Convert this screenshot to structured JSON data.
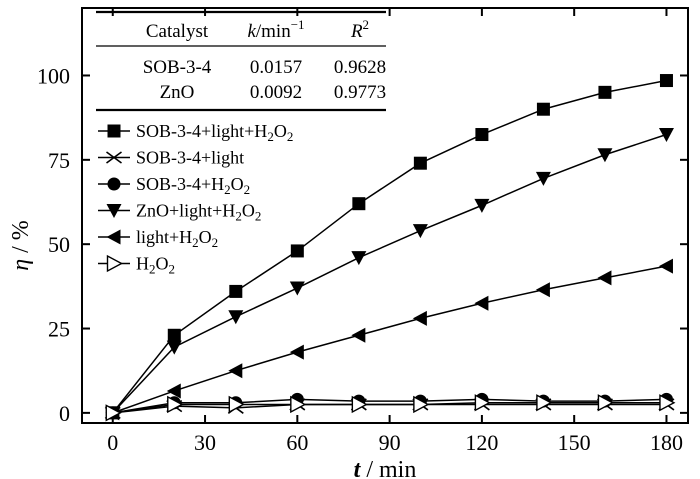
{
  "chart_data": {
    "type": "line",
    "xlabel": {
      "symbol": "t",
      "unit": " / min"
    },
    "ylabel": {
      "symbol": "η",
      "unit": " / %"
    },
    "xlim": [
      -10,
      187
    ],
    "ylim": [
      -3,
      120
    ],
    "xticks": [
      0,
      30,
      60,
      90,
      120,
      150,
      180
    ],
    "yticks": [
      0,
      25,
      50,
      75,
      100
    ],
    "grid": false,
    "legend_position": "left",
    "series": [
      {
        "name": "SOB-3-4+light+H2O2",
        "legend_main": "SOB-3-4+light+H",
        "legend_sub1": "2",
        "legend_mid": "O",
        "legend_sub2": "2",
        "marker": "square-filled",
        "x": [
          0,
          20,
          40,
          60,
          80,
          100,
          120,
          140,
          160,
          180
        ],
        "y": [
          0,
          23,
          36,
          48,
          62,
          74,
          82.5,
          90,
          95,
          98.5
        ]
      },
      {
        "name": "SOB-3-4+light",
        "legend_main": "SOB-3-4+light",
        "legend_sub1": "",
        "legend_mid": "",
        "legend_sub2": "",
        "marker": "x",
        "x": [
          0,
          20,
          40,
          60,
          80,
          100,
          120,
          140,
          160,
          180
        ],
        "y": [
          0,
          2,
          1.5,
          2.5,
          2.5,
          2.5,
          2.5,
          2.5,
          2.5,
          2.5
        ]
      },
      {
        "name": "SOB-3-4+H2O2",
        "legend_main": "SOB-3-4+H",
        "legend_sub1": "2",
        "legend_mid": "O",
        "legend_sub2": "2",
        "marker": "circle-filled",
        "x": [
          0,
          20,
          40,
          60,
          80,
          100,
          120,
          140,
          160,
          180
        ],
        "y": [
          0,
          3,
          3,
          4,
          3.5,
          3.5,
          4,
          3.5,
          3.5,
          4
        ]
      },
      {
        "name": "ZnO+light+H2O2",
        "legend_main": "ZnO+light+H",
        "legend_sub1": "2",
        "legend_mid": "O",
        "legend_sub2": "2",
        "marker": "triangle-down-filled",
        "x": [
          0,
          20,
          40,
          60,
          80,
          100,
          120,
          140,
          160,
          180
        ],
        "y": [
          0,
          19.5,
          28.5,
          37,
          46,
          54,
          61.5,
          69.5,
          76.5,
          82.5
        ]
      },
      {
        "name": "light+H2O2",
        "legend_main": "light+H",
        "legend_sub1": "2",
        "legend_mid": "O",
        "legend_sub2": "2",
        "marker": "triangle-left-filled",
        "x": [
          0,
          20,
          40,
          60,
          80,
          100,
          120,
          140,
          160,
          180
        ],
        "y": [
          0,
          6.5,
          12.5,
          18,
          23,
          28,
          32.5,
          36.5,
          40,
          43.5
        ]
      },
      {
        "name": "H2O2",
        "legend_main": "H",
        "legend_sub1": "2",
        "legend_mid": "O",
        "legend_sub2": "2",
        "marker": "triangle-right-open",
        "x": [
          0,
          20,
          40,
          60,
          80,
          100,
          120,
          140,
          160,
          180
        ],
        "y": [
          0,
          2.5,
          2.5,
          2.5,
          2.5,
          2.5,
          3,
          3,
          3,
          3
        ]
      }
    ],
    "inset_table": {
      "headers": {
        "catalyst": "Catalyst",
        "k_symbol": "k",
        "k_unit": "/min",
        "k_unit_sup": "−1",
        "r_symbol": "R",
        "r_sup": "2"
      },
      "rows": [
        {
          "catalyst": "SOB-3-4",
          "k": "0.0157",
          "r2": "0.9628"
        },
        {
          "catalyst": "ZnO",
          "k": "0.0092",
          "r2": "0.9773"
        }
      ]
    }
  }
}
